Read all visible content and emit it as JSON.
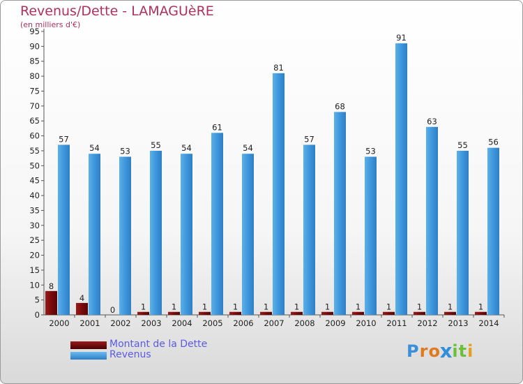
{
  "header": {
    "title": "Revenus/Dette - LAMAGUèRE",
    "subtitle": "(en milliers d'€)"
  },
  "legend": {
    "items": [
      {
        "label": "Montant de la Dette",
        "color": "#7a0a0a"
      },
      {
        "label": "Revenus",
        "color": "#3f97db"
      }
    ]
  },
  "logo": {
    "letters": [
      "P",
      "r",
      "o",
      "x",
      "i",
      "t",
      "i"
    ],
    "colors": [
      "#3a8fd8",
      "#e07a1f",
      "#e07a1f",
      "#2f8fdc",
      "#6bbf3a",
      "#6bbf3a",
      "#e0a020"
    ]
  },
  "chart_data": {
    "type": "bar",
    "categories": [
      "2000",
      "2001",
      "2002",
      "2003",
      "2004",
      "2005",
      "2006",
      "2007",
      "2008",
      "2009",
      "2010",
      "2011",
      "2012",
      "2013",
      "2014"
    ],
    "series": [
      {
        "name": "Montant de la Dette",
        "values": [
          8,
          4,
          0,
          1,
          1,
          1,
          1,
          1,
          1,
          1,
          1,
          1,
          1,
          1,
          1
        ],
        "color": "#7a0a0a"
      },
      {
        "name": "Revenus",
        "values": [
          57,
          54,
          53,
          55,
          54,
          61,
          54,
          81,
          57,
          68,
          53,
          91,
          63,
          55,
          56
        ],
        "color": "#3f97db"
      }
    ],
    "ylim": [
      0,
      95
    ],
    "ytick_step": 5,
    "grid": false
  }
}
